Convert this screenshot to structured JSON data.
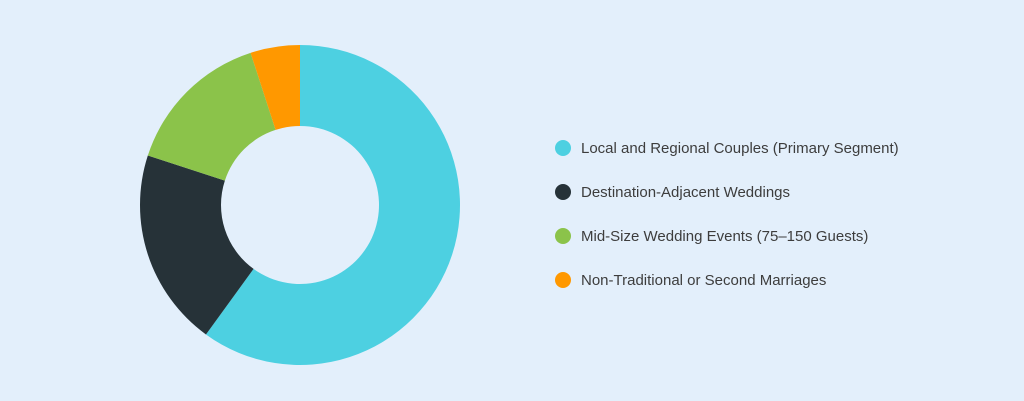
{
  "chart_data": {
    "type": "pie",
    "donut": true,
    "categories": [
      "Local and Regional Couples (Primary Segment)",
      "Destination-Adjacent Weddings",
      "Mid-Size Wedding Events (75–150 Guests)",
      "Non-Traditional or Second Marriages"
    ],
    "values": [
      60,
      20,
      15,
      5
    ],
    "colors": [
      "#4DD0E1",
      "#263238",
      "#8BC34A",
      "#FF9800"
    ],
    "legend_position": "right"
  }
}
